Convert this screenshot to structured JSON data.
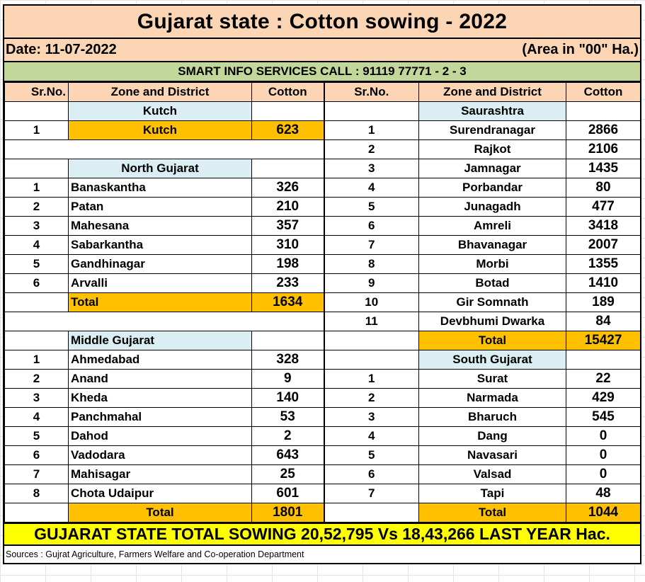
{
  "title": "Gujarat state : Cotton sowing - 2022",
  "date_label": "Date: 11-07-2022",
  "unit_label": "(Area in \"00\" Ha.)",
  "info_line": "SMART INFO SERVICES CALL : 91119 77771 - 2 - 3",
  "headers": {
    "srno": "Sr.No.",
    "zone": "Zone and District",
    "cotton": "Cotton"
  },
  "rows": [
    {
      "L": {
        "sr": "",
        "name": "Kutch",
        "val": "",
        "type": "zone",
        "align": "c"
      },
      "R": {
        "sr": "",
        "name": "Saurashtra",
        "val": "",
        "type": "zone",
        "align": "c"
      }
    },
    {
      "L": {
        "sr": "1",
        "name": "Kutch",
        "val": "623",
        "type": "total",
        "align": "c"
      },
      "R": {
        "sr": "1",
        "name": "Surendranagar",
        "val": "2866",
        "type": "data",
        "align": "c"
      }
    },
    {
      "L": {
        "sr": "",
        "name": "",
        "val": "",
        "type": "blank",
        "align": "c"
      },
      "R": {
        "sr": "2",
        "name": "Rajkot",
        "val": "2106",
        "type": "data",
        "align": "c"
      }
    },
    {
      "L": {
        "sr": "",
        "name": "North Gujarat",
        "val": "",
        "type": "zone",
        "align": "c"
      },
      "R": {
        "sr": "3",
        "name": "Jamnagar",
        "val": "1435",
        "type": "data",
        "align": "c"
      }
    },
    {
      "L": {
        "sr": "1",
        "name": "Banaskantha",
        "val": "326",
        "type": "data",
        "align": "l"
      },
      "R": {
        "sr": "4",
        "name": "Porbandar",
        "val": "80",
        "type": "data",
        "align": "c"
      }
    },
    {
      "L": {
        "sr": "2",
        "name": "Patan",
        "val": "210",
        "type": "data",
        "align": "l"
      },
      "R": {
        "sr": "5",
        "name": "Junagadh",
        "val": "477",
        "type": "data",
        "align": "c"
      }
    },
    {
      "L": {
        "sr": "3",
        "name": "Mahesana",
        "val": "357",
        "type": "data",
        "align": "l"
      },
      "R": {
        "sr": "6",
        "name": "Amreli",
        "val": "3418",
        "type": "data",
        "align": "c"
      }
    },
    {
      "L": {
        "sr": "4",
        "name": "Sabarkantha",
        "val": "310",
        "type": "data",
        "align": "l"
      },
      "R": {
        "sr": "7",
        "name": "Bhavanagar",
        "val": "2007",
        "type": "data",
        "align": "c"
      }
    },
    {
      "L": {
        "sr": "5",
        "name": "Gandhinagar",
        "val": "198",
        "type": "data",
        "align": "l"
      },
      "R": {
        "sr": "8",
        "name": "Morbi",
        "val": "1355",
        "type": "data",
        "align": "c"
      }
    },
    {
      "L": {
        "sr": "6",
        "name": "Arvalli",
        "val": "233",
        "type": "data",
        "align": "l"
      },
      "R": {
        "sr": "9",
        "name": "Botad",
        "val": "1410",
        "type": "data",
        "align": "c"
      }
    },
    {
      "L": {
        "sr": "",
        "name": "Total",
        "val": "1634",
        "type": "total",
        "align": "l"
      },
      "R": {
        "sr": "10",
        "name": "Gir Somnath",
        "val": "189",
        "type": "data",
        "align": "c"
      }
    },
    {
      "L": {
        "sr": "",
        "name": "",
        "val": "",
        "type": "blank",
        "align": "c"
      },
      "R": {
        "sr": "11",
        "name": "Devbhumi Dwarka",
        "val": "84",
        "type": "data",
        "align": "c"
      }
    },
    {
      "L": {
        "sr": "",
        "name": "Middle Gujarat",
        "val": "",
        "type": "zone",
        "align": "l"
      },
      "R": {
        "sr": "",
        "name": "Total",
        "val": "15427",
        "type": "total",
        "align": "c"
      }
    },
    {
      "L": {
        "sr": "1",
        "name": "Ahmedabad",
        "val": "328",
        "type": "data",
        "align": "l"
      },
      "R": {
        "sr": "",
        "name": "South Gujarat",
        "val": "",
        "type": "zone",
        "align": "c"
      }
    },
    {
      "L": {
        "sr": "2",
        "name": "Anand",
        "val": "9",
        "type": "data",
        "align": "l"
      },
      "R": {
        "sr": "1",
        "name": "Surat",
        "val": "22",
        "type": "data",
        "align": "c"
      }
    },
    {
      "L": {
        "sr": "3",
        "name": "Kheda",
        "val": "140",
        "type": "data",
        "align": "l"
      },
      "R": {
        "sr": "2",
        "name": "Narmada",
        "val": "429",
        "type": "data",
        "align": "c"
      }
    },
    {
      "L": {
        "sr": "4",
        "name": "Panchmahal",
        "val": "53",
        "type": "data",
        "align": "l"
      },
      "R": {
        "sr": "3",
        "name": "Bharuch",
        "val": "545",
        "type": "data",
        "align": "c"
      }
    },
    {
      "L": {
        "sr": "5",
        "name": "Dahod",
        "val": "2",
        "type": "data",
        "align": "l"
      },
      "R": {
        "sr": "4",
        "name": "Dang",
        "val": "0",
        "type": "data",
        "align": "c"
      }
    },
    {
      "L": {
        "sr": "6",
        "name": "Vadodara",
        "val": "643",
        "type": "data",
        "align": "l"
      },
      "R": {
        "sr": "5",
        "name": "Navasari",
        "val": "0",
        "type": "data",
        "align": "c"
      }
    },
    {
      "L": {
        "sr": "7",
        "name": "Mahisagar",
        "val": "25",
        "type": "data",
        "align": "l"
      },
      "R": {
        "sr": "6",
        "name": "Valsad",
        "val": "0",
        "type": "data",
        "align": "c"
      }
    },
    {
      "L": {
        "sr": "8",
        "name": "Chota Udaipur",
        "val": "601",
        "type": "data",
        "align": "l"
      },
      "R": {
        "sr": "7",
        "name": "Tapi",
        "val": "48",
        "type": "data",
        "align": "c"
      }
    },
    {
      "L": {
        "sr": "",
        "name": "Total",
        "val": "1801",
        "type": "total",
        "align": "c"
      },
      "R": {
        "sr": "",
        "name": "Total",
        "val": "1044",
        "type": "total",
        "align": "c"
      }
    }
  ],
  "summary_banner": "GUJARAT STATE TOTAL SOWING 20,52,795 Vs 18,43,266 LAST YEAR Hac.",
  "sources": "Sources : Gujrat Agriculture, Farmers Welfare and Co-operation Department",
  "colors": {
    "header_peach": "#fcd5b4",
    "info_green": "#c4d79b",
    "zone_blue": "#daeef3",
    "total_orange": "#ffc000",
    "banner_yellow": "#ffff00"
  }
}
